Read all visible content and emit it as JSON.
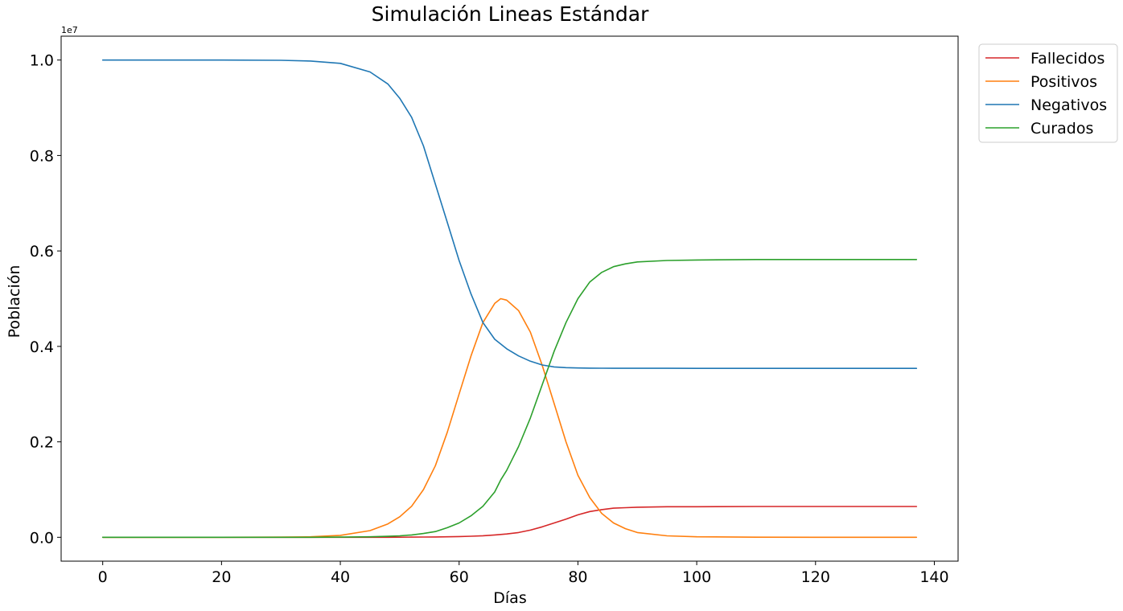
{
  "chart_data": {
    "type": "line",
    "title": "Simulación Lineas Estándar",
    "xlabel": "Días",
    "ylabel": "Población",
    "y_offset_label": "1e7",
    "xlim": [
      -7,
      144
    ],
    "ylim": [
      -0.05,
      1.05
    ],
    "xticks": [
      0,
      20,
      40,
      60,
      80,
      100,
      120,
      140
    ],
    "xtick_labels": [
      "0",
      "20",
      "40",
      "60",
      "80",
      "100",
      "120",
      "140"
    ],
    "yticks": [
      0.0,
      0.2,
      0.4,
      0.6,
      0.8,
      1.0
    ],
    "ytick_labels": [
      "0.0",
      "0.2",
      "0.4",
      "0.6",
      "0.8",
      "1.0"
    ],
    "grid": false,
    "legend_position": "outside-top-right",
    "x": [
      0,
      10,
      20,
      30,
      35,
      40,
      45,
      48,
      50,
      52,
      54,
      56,
      58,
      60,
      62,
      64,
      66,
      67,
      68,
      70,
      72,
      74,
      76,
      78,
      80,
      82,
      84,
      86,
      88,
      90,
      95,
      100,
      110,
      120,
      137
    ],
    "series": [
      {
        "name": "Fallecidos",
        "color": "#d62728",
        "values": [
          0,
          0,
          0,
          0,
          0,
          0,
          0,
          0.0001,
          0.0002,
          0.0003,
          0.0005,
          0.0007,
          0.001,
          0.0015,
          0.0022,
          0.0033,
          0.005,
          0.006,
          0.007,
          0.01,
          0.015,
          0.022,
          0.03,
          0.038,
          0.047,
          0.054,
          0.058,
          0.061,
          0.062,
          0.063,
          0.064,
          0.064,
          0.0645,
          0.0645,
          0.0645
        ]
      },
      {
        "name": "Positivos",
        "color": "#ff7f0e",
        "values": [
          0,
          0,
          0,
          0.0003,
          0.001,
          0.004,
          0.014,
          0.028,
          0.043,
          0.065,
          0.1,
          0.15,
          0.22,
          0.3,
          0.38,
          0.45,
          0.49,
          0.5,
          0.497,
          0.475,
          0.43,
          0.36,
          0.28,
          0.2,
          0.13,
          0.083,
          0.05,
          0.03,
          0.018,
          0.01,
          0.003,
          0.001,
          0.0002,
          0,
          0
        ]
      },
      {
        "name": "Negativos",
        "color": "#1f77b4",
        "values": [
          1.0,
          1.0,
          1.0,
          0.9995,
          0.998,
          0.993,
          0.975,
          0.95,
          0.92,
          0.88,
          0.82,
          0.74,
          0.66,
          0.58,
          0.51,
          0.45,
          0.415,
          0.405,
          0.395,
          0.38,
          0.369,
          0.361,
          0.357,
          0.3555,
          0.3548,
          0.3545,
          0.3543,
          0.3542,
          0.3542,
          0.3541,
          0.3541,
          0.354,
          0.354,
          0.354,
          0.354
        ]
      },
      {
        "name": "Curados",
        "color": "#2ca02c",
        "values": [
          0,
          0,
          0,
          0,
          0,
          0.0003,
          0.001,
          0.002,
          0.003,
          0.005,
          0.008,
          0.012,
          0.02,
          0.03,
          0.045,
          0.065,
          0.095,
          0.12,
          0.14,
          0.19,
          0.25,
          0.32,
          0.39,
          0.45,
          0.5,
          0.535,
          0.555,
          0.567,
          0.573,
          0.577,
          0.58,
          0.581,
          0.582,
          0.582,
          0.582
        ]
      }
    ]
  }
}
